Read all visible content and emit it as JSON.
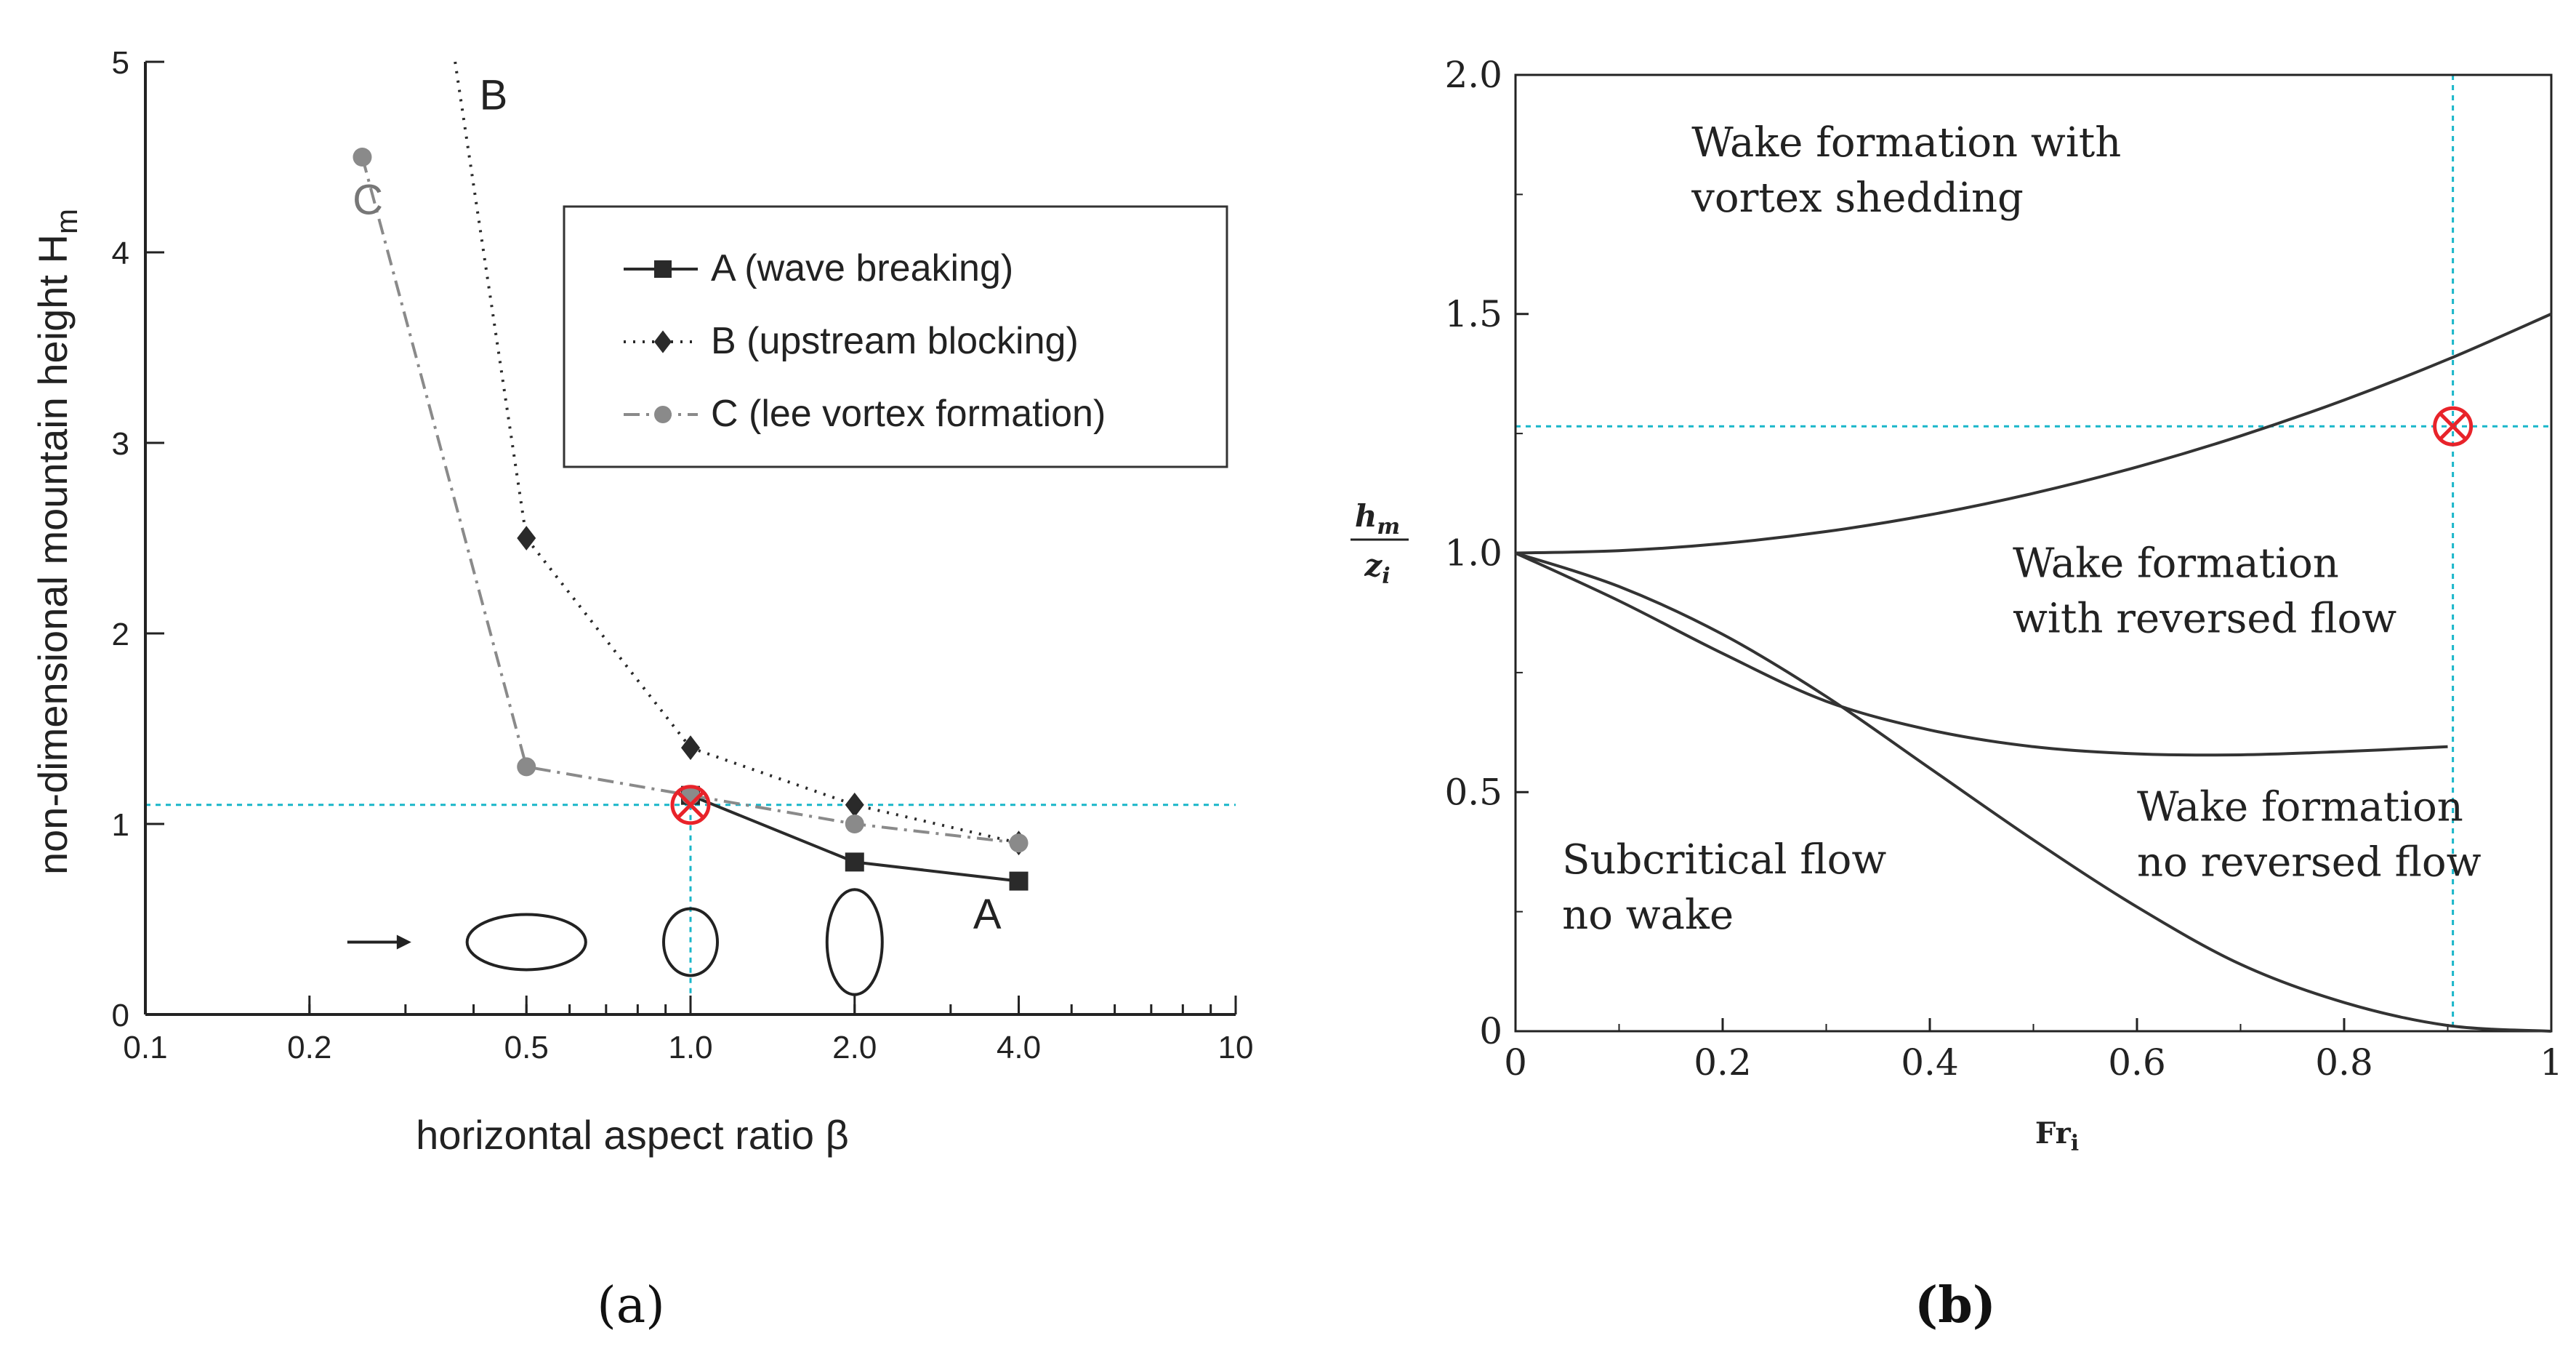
{
  "chart_data": [
    {
      "id": "a",
      "panel_label": "(a)",
      "type": "line",
      "xscale": "log",
      "xlabel": "horizontal aspect ratio β",
      "ylabel": "non-dimensional mountain height H",
      "ylabel_sub": "m",
      "xlim": [
        0.1,
        10
      ],
      "ylim": [
        0,
        5
      ],
      "xticks": [
        {
          "v": 0.1,
          "label": "0.1"
        },
        {
          "v": 0.2,
          "label": "0.2"
        },
        {
          "v": 0.5,
          "label": "0.5"
        },
        {
          "v": 1.0,
          "label": "1.0"
        },
        {
          "v": 2.0,
          "label": "2.0"
        },
        {
          "v": 4.0,
          "label": "4.0"
        },
        {
          "v": 10,
          "label": "10"
        }
      ],
      "yticks": [
        {
          "v": 0,
          "label": "0"
        },
        {
          "v": 1,
          "label": "1"
        },
        {
          "v": 2,
          "label": "2"
        },
        {
          "v": 3,
          "label": "3"
        },
        {
          "v": 4,
          "label": "4"
        },
        {
          "v": 5,
          "label": "5"
        }
      ],
      "series": [
        {
          "name": "A (wave breaking)",
          "tag": "A",
          "marker": "square",
          "style": "solid",
          "color": "#2a2a2a",
          "x": [
            1.0,
            2.0,
            4.0
          ],
          "y": [
            1.15,
            0.8,
            0.7
          ]
        },
        {
          "name": "B (upstream blocking)",
          "tag": "B",
          "marker": "diamond",
          "style": "dotted",
          "color": "#2a2a2a",
          "x": [
            0.37,
            0.5,
            1.0,
            2.0,
            4.0
          ],
          "y": [
            5.0,
            2.5,
            1.4,
            1.1,
            0.9
          ]
        },
        {
          "name": "C (lee vortex formation)",
          "tag": "C",
          "marker": "circle",
          "style": "dashdot",
          "color": "#8a8a8a",
          "x": [
            0.25,
            0.5,
            1.0,
            2.0,
            4.0
          ],
          "y": [
            4.5,
            1.3,
            1.15,
            1.0,
            0.9
          ]
        }
      ],
      "curve_labels": [
        {
          "text": "A",
          "x": 3.3,
          "y": 0.45
        },
        {
          "text": "B",
          "x": 0.41,
          "y": 4.75
        },
        {
          "text": "C",
          "x": 0.24,
          "y": 4.2
        }
      ],
      "legend": "upper right",
      "mountain_shapes": [
        {
          "x": 0.5,
          "aspect": 0.5
        },
        {
          "x": 1.0,
          "aspect": 1.0
        },
        {
          "x": 2.0,
          "aspect": 2.0
        }
      ],
      "flow_arrow_at_x": 0.3,
      "reference_point": {
        "x": 1.0,
        "y": 1.1
      },
      "reference_color": "#19b6c9",
      "marker_color": "#e8232a"
    },
    {
      "id": "b",
      "panel_label": "(b)",
      "type": "line",
      "xlabel": "Fr",
      "xlabel_sub": "i",
      "ylabel_num": "h",
      "ylabel_num_sub": "m",
      "ylabel_den": "z",
      "ylabel_den_sub": "i",
      "xlim": [
        0,
        1
      ],
      "ylim": [
        0,
        2
      ],
      "xticks": [
        {
          "v": 0,
          "label": "0"
        },
        {
          "v": 0.2,
          "label": "0.2"
        },
        {
          "v": 0.4,
          "label": "0.4"
        },
        {
          "v": 0.6,
          "label": "0.6"
        },
        {
          "v": 0.8,
          "label": "0.8"
        },
        {
          "v": 1,
          "label": "1"
        }
      ],
      "yticks": [
        {
          "v": 0,
          "label": "0"
        },
        {
          "v": 0.5,
          "label": "0.5"
        },
        {
          "v": 1.0,
          "label": "1.0"
        },
        {
          "v": 1.5,
          "label": "1.5"
        },
        {
          "v": 2.0,
          "label": "2.0"
        }
      ],
      "series": [
        {
          "name": "vortex shedding boundary",
          "color": "#333333",
          "x": [
            0,
            0.1,
            0.2,
            0.3,
            0.4,
            0.5,
            0.6,
            0.7,
            0.8,
            0.9,
            1.0
          ],
          "y": [
            1.0,
            1.005,
            1.02,
            1.045,
            1.08,
            1.125,
            1.18,
            1.245,
            1.32,
            1.405,
            1.5
          ]
        },
        {
          "name": "reversed flow boundary",
          "color": "#333333",
          "x": [
            0,
            0.1,
            0.2,
            0.3,
            0.4,
            0.5,
            0.6,
            0.7,
            0.8,
            0.9
          ],
          "y": [
            1.0,
            0.9,
            0.79,
            0.69,
            0.63,
            0.595,
            0.58,
            0.578,
            0.585,
            0.595
          ]
        },
        {
          "name": "wake boundary",
          "color": "#333333",
          "x": [
            0,
            0.1,
            0.2,
            0.3,
            0.4,
            0.5,
            0.6,
            0.7,
            0.8,
            0.9,
            1.0
          ],
          "y": [
            1.0,
            0.93,
            0.83,
            0.7,
            0.55,
            0.4,
            0.26,
            0.14,
            0.06,
            0.012,
            0
          ]
        }
      ],
      "region_labels": [
        {
          "lines": [
            "Wake formation with",
            "vortex shedding"
          ],
          "x": 0.17,
          "y": 1.83
        },
        {
          "lines": [
            "Wake formation",
            "with reversed flow"
          ],
          "x": 0.48,
          "y": 0.95
        },
        {
          "lines": [
            "Wake formation",
            "no reversed flow"
          ],
          "x": 0.6,
          "y": 0.44
        },
        {
          "lines": [
            "Subcritical flow",
            "no wake"
          ],
          "x": 0.045,
          "y": 0.33
        }
      ],
      "reference_point": {
        "x": 0.905,
        "y": 1.265
      },
      "reference_color": "#19b6c9",
      "marker_color": "#e8232a"
    }
  ]
}
